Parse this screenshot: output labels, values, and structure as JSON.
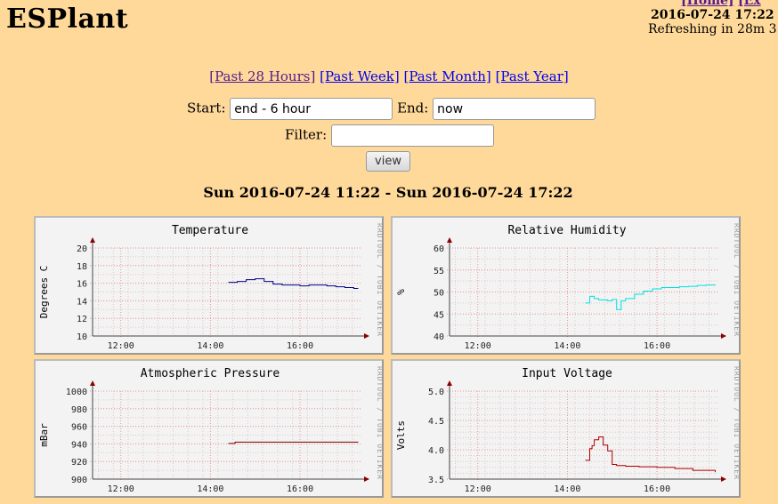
{
  "header": {
    "title": "ESPlant",
    "links": [
      "[Home]",
      "[Ex"
    ],
    "datetime": "2016-07-24 17:22",
    "refresh": "Refreshing in 28m 3"
  },
  "nav": {
    "ranges": [
      "[Past 28 Hours]",
      "[Past Week]",
      "[Past Month]",
      "[Past Year]"
    ]
  },
  "form": {
    "start_label": "Start:",
    "start_value": "end - 6 hour",
    "end_label": "End:",
    "end_value": "now",
    "filter_label": "Filter:",
    "filter_value": "",
    "view_label": "view"
  },
  "range_heading": "Sun 2016-07-24 11:22 - Sun 2016-07-24 17:22",
  "watermark": "RRDTOOL / TOBI OETIKER",
  "colors": {
    "background": "#ffd99a",
    "temperature": "#00008b",
    "humidity": "#00e0e0",
    "pressure": "#800000",
    "voltage": "#b00000"
  },
  "chart_data": [
    {
      "type": "line",
      "title": "Temperature",
      "ylabel": "Degrees C",
      "ylim": [
        10,
        20
      ],
      "yticks": [
        "20",
        "18",
        "16",
        "14",
        "12",
        "10"
      ],
      "xticks": [
        "12:00",
        "14:00",
        "16:00"
      ],
      "xlim_hours": [
        11.37,
        17.37
      ],
      "grid": true,
      "series": [
        {
          "x": [
            14.4,
            14.6,
            14.8,
            15.0,
            15.2,
            15.4,
            15.6,
            15.8,
            16.0,
            16.2,
            16.4,
            16.6,
            16.8,
            17.0,
            17.2,
            17.3
          ],
          "y": [
            16.1,
            16.2,
            16.4,
            16.5,
            16.2,
            15.9,
            15.8,
            15.8,
            15.7,
            15.8,
            15.8,
            15.7,
            15.6,
            15.5,
            15.4,
            15.4
          ]
        }
      ]
    },
    {
      "type": "line",
      "title": "Relative Humidity",
      "ylabel": "%",
      "ylim": [
        40,
        60
      ],
      "yticks": [
        "60",
        "55",
        "50",
        "45",
        "40"
      ],
      "xticks": [
        "12:00",
        "14:00",
        "16:00"
      ],
      "xlim_hours": [
        11.37,
        17.37
      ],
      "grid": true,
      "series": [
        {
          "x": [
            14.4,
            14.5,
            14.6,
            14.7,
            14.9,
            15.0,
            15.1,
            15.2,
            15.3,
            15.5,
            15.7,
            15.9,
            16.1,
            16.3,
            16.5,
            16.7,
            16.9,
            17.1,
            17.3
          ],
          "y": [
            47.5,
            49.0,
            48.5,
            48.2,
            48.0,
            48.3,
            46.0,
            48.0,
            48.5,
            49.5,
            50.2,
            50.7,
            51.0,
            51.0,
            51.2,
            51.3,
            51.5,
            51.6,
            51.7
          ]
        }
      ]
    },
    {
      "type": "line",
      "title": "Atmospheric Pressure",
      "ylabel": "mBar",
      "ylim": [
        900,
        1000
      ],
      "yticks": [
        "1000",
        "980",
        "960",
        "940",
        "920",
        "900"
      ],
      "xticks": [
        "12:00",
        "14:00",
        "16:00"
      ],
      "xlim_hours": [
        11.37,
        17.37
      ],
      "grid": true,
      "series": [
        {
          "x": [
            14.4,
            14.5,
            14.55,
            15.0,
            16.0,
            17.0,
            17.3
          ],
          "y": [
            940.5,
            940.5,
            942,
            942,
            942,
            942,
            942
          ]
        }
      ]
    },
    {
      "type": "line",
      "title": "Input Voltage",
      "ylabel": "Volts",
      "ylim": [
        3.5,
        5.0
      ],
      "yticks": [
        "5.0",
        "4.5",
        "4.0",
        "3.5"
      ],
      "xticks": [
        "12:00",
        "14:00",
        "16:00"
      ],
      "xlim_hours": [
        11.37,
        17.37
      ],
      "grid": true,
      "series": [
        {
          "x": [
            14.4,
            14.5,
            14.55,
            14.6,
            14.7,
            14.8,
            14.9,
            15.0,
            15.1,
            15.3,
            15.6,
            16.0,
            16.4,
            16.8,
            17.3
          ],
          "y": [
            3.82,
            4.02,
            4.07,
            4.17,
            4.22,
            4.08,
            3.98,
            3.75,
            3.73,
            3.72,
            3.71,
            3.7,
            3.68,
            3.65,
            3.62
          ]
        }
      ]
    }
  ]
}
